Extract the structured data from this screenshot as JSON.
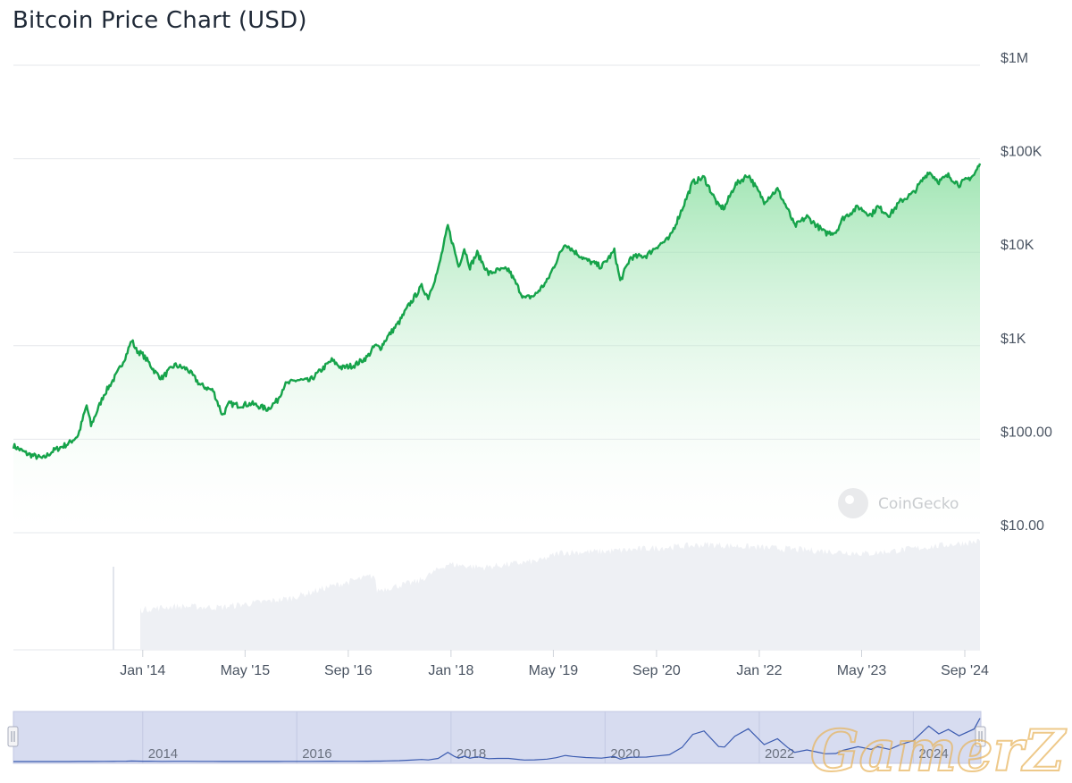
{
  "title": "Bitcoin Price Chart (USD)",
  "watermark": "CoinGecko",
  "brand": "GamerZ",
  "colors": {
    "line": "#16a34a",
    "area_top": "#86e0a0",
    "volume": "#eef0f4",
    "navigator_fill": "#d7dcf0",
    "navigator_line": "#3b5bb0",
    "text": "#4b5563",
    "grid": "#e5e7eb"
  },
  "chart_data": {
    "type": "area",
    "yscale": "log",
    "y_axis_labels": [
      {
        "label": "$1M",
        "value": 1000000
      },
      {
        "label": "$100K",
        "value": 100000
      },
      {
        "label": "$10K",
        "value": 10000
      },
      {
        "label": "$1K",
        "value": 1000
      },
      {
        "label": "$100.00",
        "value": 100
      },
      {
        "label": "$10.00",
        "value": 10
      }
    ],
    "x_axis_labels": [
      {
        "label": "Jan '14",
        "date": "2014-01-01"
      },
      {
        "label": "May '15",
        "date": "2015-05-01"
      },
      {
        "label": "Sep '16",
        "date": "2016-09-01"
      },
      {
        "label": "Jan '18",
        "date": "2018-01-01"
      },
      {
        "label": "May '19",
        "date": "2019-05-01"
      },
      {
        "label": "Sep '20",
        "date": "2020-09-01"
      },
      {
        "label": "Jan '22",
        "date": "2022-01-01"
      },
      {
        "label": "May '23",
        "date": "2023-05-01"
      },
      {
        "label": "Sep '24",
        "date": "2024-09-01"
      }
    ],
    "navigator_labels": [
      "2014",
      "2016",
      "2018",
      "2020",
      "2022",
      "2024"
    ],
    "series": [
      {
        "type": "price",
        "points": [
          [
            "2012-04-28",
            85
          ],
          [
            "2012-07-01",
            70
          ],
          [
            "2012-09-15",
            62
          ],
          [
            "2012-11-01",
            75
          ],
          [
            "2013-01-15",
            90
          ],
          [
            "2013-03-01",
            110
          ],
          [
            "2013-04-10",
            230
          ],
          [
            "2013-05-01",
            140
          ],
          [
            "2013-07-01",
            300
          ],
          [
            "2013-09-01",
            500
          ],
          [
            "2013-10-15",
            800
          ],
          [
            "2013-11-10",
            1150
          ],
          [
            "2013-12-01",
            900
          ],
          [
            "2014-01-01",
            800
          ],
          [
            "2014-02-01",
            650
          ],
          [
            "2014-03-01",
            520
          ],
          [
            "2014-04-01",
            450
          ],
          [
            "2014-06-01",
            620
          ],
          [
            "2014-08-01",
            560
          ],
          [
            "2014-10-01",
            380
          ],
          [
            "2014-12-01",
            330
          ],
          [
            "2015-01-14",
            180
          ],
          [
            "2015-02-15",
            240
          ],
          [
            "2015-04-01",
            230
          ],
          [
            "2015-06-01",
            240
          ],
          [
            "2015-08-15",
            210
          ],
          [
            "2015-10-01",
            260
          ],
          [
            "2015-11-04",
            380
          ],
          [
            "2016-01-01",
            430
          ],
          [
            "2016-03-01",
            420
          ],
          [
            "2016-06-15",
            700
          ],
          [
            "2016-08-01",
            580
          ],
          [
            "2016-10-01",
            620
          ],
          [
            "2016-12-01",
            760
          ],
          [
            "2017-01-05",
            1000
          ],
          [
            "2017-02-01",
            950
          ],
          [
            "2017-03-01",
            1200
          ],
          [
            "2017-05-01",
            1800
          ],
          [
            "2017-06-15",
            2700
          ],
          [
            "2017-08-15",
            4300
          ],
          [
            "2017-09-15",
            3300
          ],
          [
            "2017-11-01",
            6500
          ],
          [
            "2017-12-17",
            19000
          ],
          [
            "2018-01-15",
            11000
          ],
          [
            "2018-02-06",
            7000
          ],
          [
            "2018-03-05",
            11000
          ],
          [
            "2018-04-01",
            7000
          ],
          [
            "2018-05-05",
            9800
          ],
          [
            "2018-06-28",
            5900
          ],
          [
            "2018-08-10",
            6400
          ],
          [
            "2018-10-01",
            6500
          ],
          [
            "2018-11-25",
            3800
          ],
          [
            "2018-12-15",
            3200
          ],
          [
            "2019-02-01",
            3450
          ],
          [
            "2019-04-01",
            4900
          ],
          [
            "2019-05-15",
            8000
          ],
          [
            "2019-06-26",
            12500
          ],
          [
            "2019-08-01",
            10500
          ],
          [
            "2019-10-01",
            8300
          ],
          [
            "2019-12-15",
            7000
          ],
          [
            "2020-02-14",
            10300
          ],
          [
            "2020-03-13",
            4900
          ],
          [
            "2020-05-01",
            8800
          ],
          [
            "2020-07-15",
            9200
          ],
          [
            "2020-09-01",
            11500
          ],
          [
            "2020-11-01",
            14000
          ],
          [
            "2020-12-31",
            29000
          ],
          [
            "2021-02-20",
            56000
          ],
          [
            "2021-04-14",
            63000
          ],
          [
            "2021-06-22",
            31000
          ],
          [
            "2021-07-20",
            29800
          ],
          [
            "2021-09-07",
            52000
          ],
          [
            "2021-11-10",
            67500
          ],
          [
            "2022-01-24",
            35000
          ],
          [
            "2022-03-28",
            47000
          ],
          [
            "2022-05-15",
            29000
          ],
          [
            "2022-06-18",
            19000
          ],
          [
            "2022-08-15",
            24000
          ],
          [
            "2022-11-10",
            16000
          ],
          [
            "2022-12-30",
            16500
          ],
          [
            "2023-02-01",
            23000
          ],
          [
            "2023-04-14",
            30500
          ],
          [
            "2023-06-15",
            25000
          ],
          [
            "2023-07-15",
            30500
          ],
          [
            "2023-09-11",
            25000
          ],
          [
            "2023-11-01",
            35000
          ],
          [
            "2024-01-01",
            43000
          ],
          [
            "2024-03-14",
            73000
          ],
          [
            "2024-05-01",
            57000
          ],
          [
            "2024-06-15",
            66000
          ],
          [
            "2024-08-05",
            53000
          ],
          [
            "2024-10-15",
            67000
          ],
          [
            "2024-11-12",
            89000
          ]
        ]
      },
      {
        "type": "volume",
        "points": [
          [
            "2013-12-20",
            0.35
          ],
          [
            "2014-06-01",
            0.38
          ],
          [
            "2015-01-01",
            0.37
          ],
          [
            "2015-12-01",
            0.45
          ],
          [
            "2016-06-01",
            0.55
          ],
          [
            "2017-01-01",
            0.65
          ],
          [
            "2017-01-15",
            0.52
          ],
          [
            "2017-08-01",
            0.6
          ],
          [
            "2017-12-15",
            0.75
          ],
          [
            "2018-06-01",
            0.72
          ],
          [
            "2019-03-01",
            0.78
          ],
          [
            "2019-06-01",
            0.85
          ],
          [
            "2020-01-01",
            0.86
          ],
          [
            "2021-05-01",
            0.92
          ],
          [
            "2022-06-01",
            0.88
          ],
          [
            "2023-06-01",
            0.84
          ],
          [
            "2024-11-12",
            0.95
          ]
        ]
      }
    ]
  }
}
